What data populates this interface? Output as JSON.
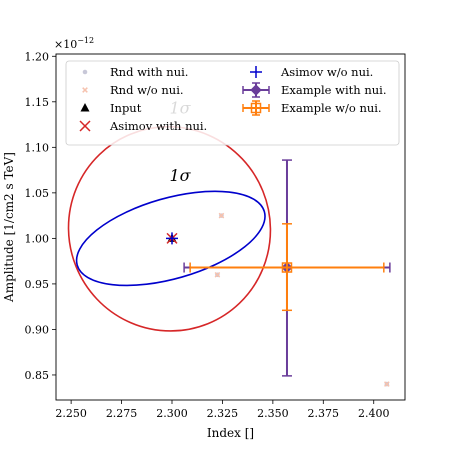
{
  "chart_data": {
    "type": "scatter",
    "xlabel": "Index []",
    "ylabel": "Amplitude [1/cm2 s TeV]",
    "y_multiplier_label": "×10",
    "y_multiplier_exponent": "−12",
    "xlim": [
      2.2425,
      2.4155
    ],
    "ylim": [
      0.8225,
      1.2025
    ],
    "x_ticks": [
      2.25,
      2.275,
      2.3,
      2.325,
      2.35,
      2.375,
      2.4
    ],
    "x_tick_labels": [
      "2.250",
      "2.275",
      "2.300",
      "2.325",
      "2.350",
      "2.375",
      "2.400"
    ],
    "y_ticks": [
      0.85,
      0.9,
      0.95,
      1.0,
      1.05,
      1.1,
      1.15,
      1.2
    ],
    "y_tick_labels": [
      "0.85",
      "0.90",
      "0.95",
      "1.00",
      "1.05",
      "1.10",
      "1.15",
      "1.20"
    ],
    "grid": false,
    "legend_position": "top",
    "legend": [
      {
        "key": "rnd_nui",
        "label": "Rnd with nui."
      },
      {
        "key": "asimov_wo",
        "label": "Asimov w/o nui."
      },
      {
        "key": "rnd_wo",
        "label": "Rnd w/o nui."
      },
      {
        "key": "example_nui",
        "label": "Example with nui."
      },
      {
        "key": "input",
        "label": "Input"
      },
      {
        "key": "example_wo",
        "label": "Example w/o nui."
      },
      {
        "key": "asimov_nui",
        "label": "Asimov with nui."
      }
    ],
    "colors": {
      "rnd_nui": "#c8c8d8",
      "rnd_wo": "#f6c2ae",
      "input": "#000000",
      "asimov_nui": "#d62728",
      "asimov_wo": "#0000cc",
      "example_nui": "#6a3d9a",
      "example_wo": "#ff7f0e",
      "contour_nui": "#d62728",
      "contour_wo": "#0000cc"
    },
    "series": [
      {
        "name": "Rnd with nui.",
        "marker": "dot",
        "points": [
          [
            2.3225,
            0.96
          ],
          [
            2.3245,
            1.025
          ],
          [
            2.4065,
            0.84
          ]
        ]
      },
      {
        "name": "Rnd w/o nui.",
        "marker": "x",
        "points": [
          [
            2.3225,
            0.96
          ],
          [
            2.3245,
            1.025
          ],
          [
            2.4065,
            0.84
          ]
        ]
      },
      {
        "name": "Input",
        "marker": "triangle",
        "points": [
          [
            2.3,
            1.0
          ]
        ]
      },
      {
        "name": "Asimov with nui.",
        "marker": "x",
        "points": [
          [
            2.3,
            1.0
          ]
        ]
      },
      {
        "name": "Asimov w/o nui.",
        "marker": "plus",
        "points": [
          [
            2.3,
            1.0
          ]
        ]
      },
      {
        "name": "Example with nui.",
        "marker": "diamond",
        "points": [
          [
            2.357,
            0.968
          ]
        ],
        "xerr": [
          2.306,
          2.408
        ],
        "yerr": [
          0.849,
          1.086
        ]
      },
      {
        "name": "Example w/o nui.",
        "marker": "square",
        "points": [
          [
            2.357,
            0.968
          ]
        ],
        "xerr": [
          2.309,
          2.405
        ],
        "yerr": [
          0.921,
          1.016
        ]
      }
    ],
    "contours": [
      {
        "series": "Asimov with nui.",
        "label": "1σ",
        "center": [
          2.3,
          1.0
        ],
        "x_range": [
          2.2487,
          2.3488
        ],
        "y_range": [
          0.8983,
          1.1226
        ],
        "label_at": [
          2.304,
          1.137
        ]
      },
      {
        "series": "Asimov w/o nui.",
        "label": "1σ",
        "center": [
          2.3,
          1.0
        ],
        "x_range": [
          2.2527,
          2.3461
        ],
        "y_range": [
          0.9483,
          1.0517
        ],
        "label_at": [
          2.304,
          1.063
        ]
      }
    ]
  }
}
